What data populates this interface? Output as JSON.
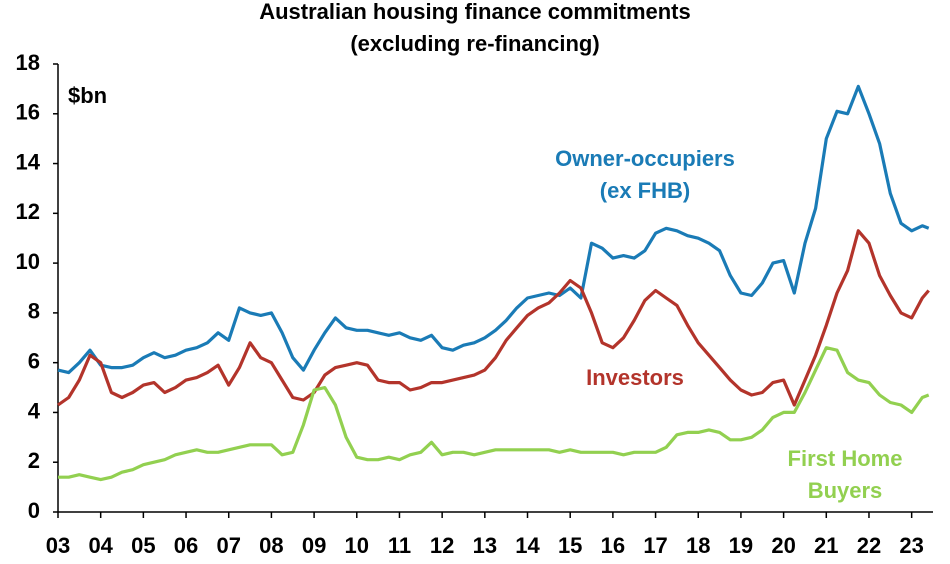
{
  "chart_data": {
    "type": "line",
    "title": "Australian housing finance commitments",
    "subtitle": "(excluding re-financing)",
    "y_unit": "$bn",
    "x": [
      2003,
      2003.25,
      2003.5,
      2003.75,
      2004,
      2004.25,
      2004.5,
      2004.75,
      2005,
      2005.25,
      2005.5,
      2005.75,
      2006,
      2006.25,
      2006.5,
      2006.75,
      2007,
      2007.25,
      2007.5,
      2007.75,
      2008,
      2008.25,
      2008.5,
      2008.75,
      2009,
      2009.25,
      2009.5,
      2009.75,
      2010,
      2010.25,
      2010.5,
      2010.75,
      2011,
      2011.25,
      2011.5,
      2011.75,
      2012,
      2012.25,
      2012.5,
      2012.75,
      2013,
      2013.25,
      2013.5,
      2013.75,
      2014,
      2014.25,
      2014.5,
      2014.75,
      2015,
      2015.25,
      2015.5,
      2015.75,
      2016,
      2016.25,
      2016.5,
      2016.75,
      2017,
      2017.25,
      2017.5,
      2017.75,
      2018,
      2018.25,
      2018.5,
      2018.75,
      2019,
      2019.25,
      2019.5,
      2019.75,
      2020,
      2020.25,
      2020.5,
      2020.75,
      2021,
      2021.25,
      2021.5,
      2021.75,
      2022,
      2022.25,
      2022.5,
      2022.75,
      2023,
      2023.25,
      2023.4
    ],
    "series": [
      {
        "name": "Owner-occupiers (ex FHB)",
        "label": [
          "Owner-occupiers",
          "(ex FHB)"
        ],
        "color": "#1a7bb6",
        "values": [
          5.7,
          5.6,
          6.0,
          6.5,
          5.9,
          5.8,
          5.8,
          5.9,
          6.2,
          6.4,
          6.2,
          6.3,
          6.5,
          6.6,
          6.8,
          7.2,
          6.9,
          8.2,
          8.0,
          7.9,
          8.0,
          7.2,
          6.2,
          5.7,
          6.5,
          7.2,
          7.8,
          7.4,
          7.3,
          7.3,
          7.2,
          7.1,
          7.2,
          7.0,
          6.9,
          7.1,
          6.6,
          6.5,
          6.7,
          6.8,
          7.0,
          7.3,
          7.7,
          8.2,
          8.6,
          8.7,
          8.8,
          8.7,
          9.0,
          8.6,
          10.8,
          10.6,
          10.2,
          10.3,
          10.2,
          10.5,
          11.2,
          11.4,
          11.3,
          11.1,
          11.0,
          10.8,
          10.5,
          9.5,
          8.8,
          8.7,
          9.2,
          10.0,
          10.1,
          8.8,
          10.8,
          12.2,
          15.0,
          16.1,
          16.0,
          17.1,
          16.0,
          14.8,
          12.8,
          11.6,
          11.3,
          11.5,
          11.4
        ]
      },
      {
        "name": "Investors",
        "label": [
          "Investors"
        ],
        "color": "#b3342b",
        "values": [
          4.3,
          4.6,
          5.3,
          6.3,
          6.0,
          4.8,
          4.6,
          4.8,
          5.1,
          5.2,
          4.8,
          5.0,
          5.3,
          5.4,
          5.6,
          5.9,
          5.1,
          5.8,
          6.8,
          6.2,
          6.0,
          5.3,
          4.6,
          4.5,
          4.8,
          5.5,
          5.8,
          5.9,
          6.0,
          5.9,
          5.3,
          5.2,
          5.2,
          4.9,
          5.0,
          5.2,
          5.2,
          5.3,
          5.4,
          5.5,
          5.7,
          6.2,
          6.9,
          7.4,
          7.9,
          8.2,
          8.4,
          8.8,
          9.3,
          9.0,
          8.0,
          6.8,
          6.6,
          7.0,
          7.7,
          8.5,
          8.9,
          8.6,
          8.3,
          7.5,
          6.8,
          6.3,
          5.8,
          5.3,
          4.9,
          4.7,
          4.8,
          5.2,
          5.3,
          4.3,
          5.3,
          6.3,
          7.5,
          8.8,
          9.7,
          11.3,
          10.8,
          9.5,
          8.7,
          8.0,
          7.8,
          8.6,
          8.9
        ]
      },
      {
        "name": "First Home Buyers",
        "label": [
          "First Home",
          "Buyers"
        ],
        "color": "#92d050",
        "values": [
          1.4,
          1.4,
          1.5,
          1.4,
          1.3,
          1.4,
          1.6,
          1.7,
          1.9,
          2.0,
          2.1,
          2.3,
          2.4,
          2.5,
          2.4,
          2.4,
          2.5,
          2.6,
          2.7,
          2.7,
          2.7,
          2.3,
          2.4,
          3.5,
          4.9,
          5.0,
          4.3,
          3.0,
          2.2,
          2.1,
          2.1,
          2.2,
          2.1,
          2.3,
          2.4,
          2.8,
          2.3,
          2.4,
          2.4,
          2.3,
          2.4,
          2.5,
          2.5,
          2.5,
          2.5,
          2.5,
          2.5,
          2.4,
          2.5,
          2.4,
          2.4,
          2.4,
          2.4,
          2.3,
          2.4,
          2.4,
          2.4,
          2.6,
          3.1,
          3.2,
          3.2,
          3.3,
          3.2,
          2.9,
          2.9,
          3.0,
          3.3,
          3.8,
          4.0,
          4.0,
          4.8,
          5.7,
          6.6,
          6.5,
          5.6,
          5.3,
          5.2,
          4.7,
          4.4,
          4.3,
          4.0,
          4.6,
          4.7
        ]
      }
    ],
    "xlim": [
      2003,
      2023.5
    ],
    "xticks": [
      {
        "value": 2003,
        "label": "03"
      },
      {
        "value": 2004,
        "label": "04"
      },
      {
        "value": 2005,
        "label": "05"
      },
      {
        "value": 2006,
        "label": "06"
      },
      {
        "value": 2007,
        "label": "07"
      },
      {
        "value": 2008,
        "label": "08"
      },
      {
        "value": 2009,
        "label": "09"
      },
      {
        "value": 2010,
        "label": "10"
      },
      {
        "value": 2011,
        "label": "11"
      },
      {
        "value": 2012,
        "label": "12"
      },
      {
        "value": 2013,
        "label": "13"
      },
      {
        "value": 2014,
        "label": "14"
      },
      {
        "value": 2015,
        "label": "15"
      },
      {
        "value": 2016,
        "label": "16"
      },
      {
        "value": 2017,
        "label": "17"
      },
      {
        "value": 2018,
        "label": "18"
      },
      {
        "value": 2019,
        "label": "19"
      },
      {
        "value": 2020,
        "label": "20"
      },
      {
        "value": 2021,
        "label": "21"
      },
      {
        "value": 2022,
        "label": "22"
      },
      {
        "value": 2023,
        "label": "23"
      }
    ],
    "ylim": [
      0,
      18
    ],
    "yticks": [
      0,
      2,
      4,
      6,
      8,
      10,
      12,
      14,
      16,
      18
    ],
    "grid": false
  }
}
